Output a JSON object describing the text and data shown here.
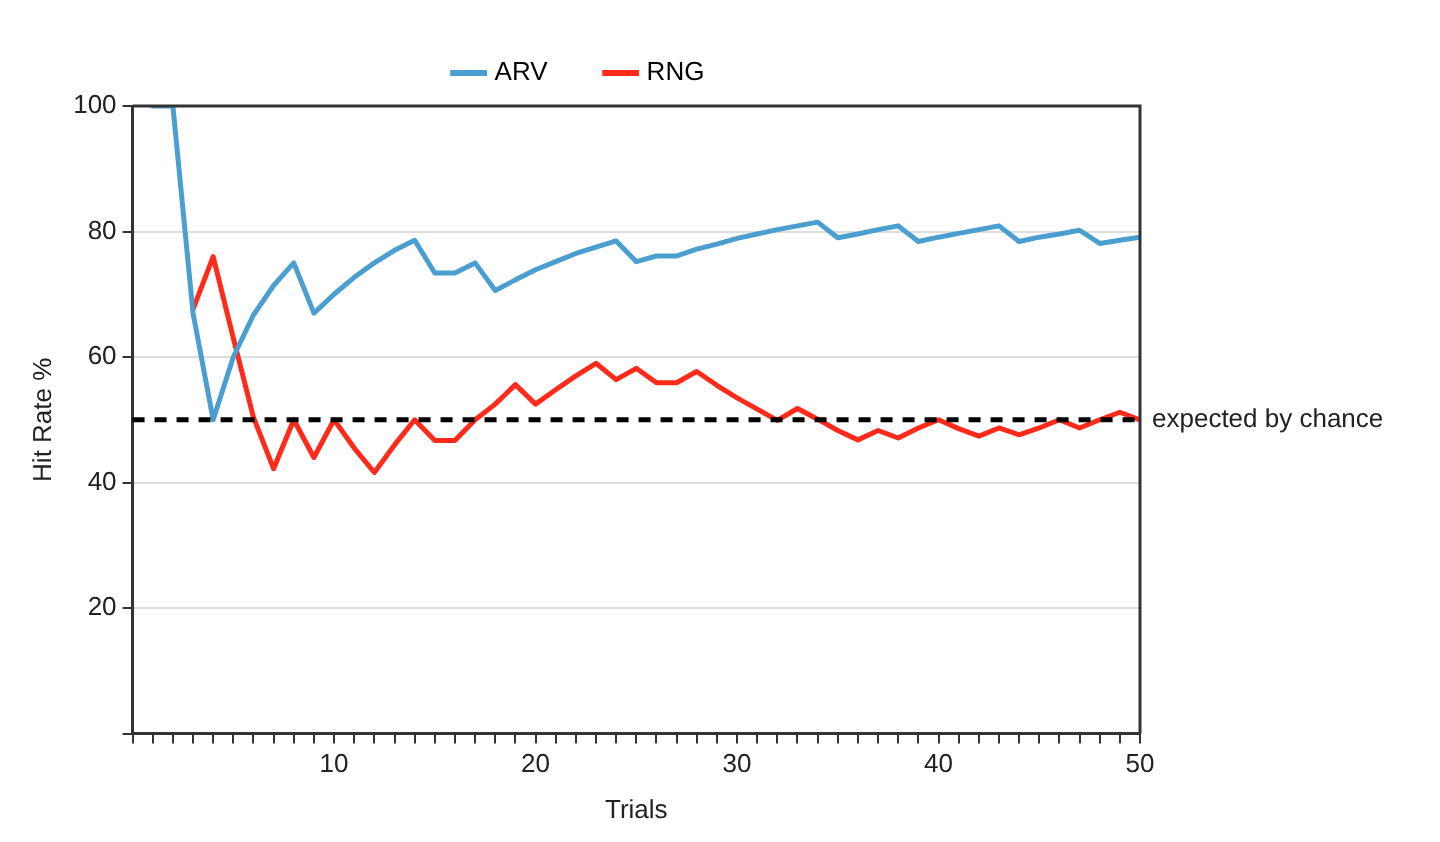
{
  "chart_data": {
    "type": "line",
    "xlabel": "Trials",
    "ylabel": "Hit Rate %",
    "x": [
      1,
      2,
      3,
      4,
      5,
      6,
      7,
      8,
      9,
      10,
      11,
      12,
      13,
      14,
      15,
      16,
      17,
      18,
      19,
      20,
      21,
      22,
      23,
      24,
      25,
      26,
      27,
      28,
      29,
      30,
      31,
      32,
      33,
      34,
      35,
      36,
      37,
      38,
      39,
      40,
      41,
      42,
      43,
      44,
      45,
      46,
      47,
      48,
      49,
      50
    ],
    "series": [
      {
        "name": "ARV",
        "color": "#4a9fd0",
        "values": [
          100,
          100,
          67,
          50,
          60,
          66.7,
          71.4,
          75,
          67,
          70,
          72.7,
          75,
          77,
          78.6,
          73.4,
          73.4,
          75,
          70.6,
          72.3,
          73.9,
          75.2,
          76.5,
          77.5,
          78.5,
          75.2,
          76.1,
          76.1,
          77.2,
          78,
          78.9,
          79.6,
          80.3,
          80.9,
          81.5,
          79,
          79.6,
          80.3,
          80.9,
          78.4,
          79.1,
          79.7,
          80.3,
          80.9,
          78.4,
          79.1,
          79.6,
          80.2,
          78.1,
          78.6,
          79.1
        ]
      },
      {
        "name": "RNG",
        "color": "#ff2a1a",
        "values": [
          null,
          null,
          67.6,
          76,
          63,
          50.4,
          42.2,
          50,
          44,
          50,
          45.5,
          41.6,
          46,
          50,
          46.7,
          46.7,
          50,
          52.5,
          55.6,
          52.5,
          54.8,
          57,
          59,
          56.4,
          58.2,
          55.9,
          55.9,
          57.7,
          55.5,
          53.5,
          51.7,
          49.9,
          51.8,
          50.1,
          48.3,
          46.8,
          48.3,
          47.1,
          48.7,
          50,
          48.6,
          47.4,
          48.7,
          47.6,
          48.7,
          50,
          48.7,
          50,
          51.2,
          50
        ]
      }
    ],
    "xlim": [
      0,
      50
    ],
    "xticks": [
      {
        "value": 0,
        "label": null
      },
      {
        "value": 1,
        "label": null
      },
      {
        "value": 2,
        "label": null
      },
      {
        "value": 3,
        "label": null
      },
      {
        "value": 4,
        "label": null
      },
      {
        "value": 5,
        "label": null
      },
      {
        "value": 6,
        "label": null
      },
      {
        "value": 7,
        "label": null
      },
      {
        "value": 8,
        "label": null
      },
      {
        "value": 9,
        "label": null
      },
      10,
      {
        "value": 11,
        "label": null
      },
      {
        "value": 12,
        "label": null
      },
      {
        "value": 13,
        "label": null
      },
      {
        "value": 14,
        "label": null
      },
      {
        "value": 15,
        "label": null
      },
      {
        "value": 16,
        "label": null
      },
      {
        "value": 17,
        "label": null
      },
      {
        "value": 18,
        "label": null
      },
      {
        "value": 19,
        "label": null
      },
      20,
      {
        "value": 21,
        "label": null
      },
      {
        "value": 22,
        "label": null
      },
      {
        "value": 23,
        "label": null
      },
      {
        "value": 24,
        "label": null
      },
      {
        "value": 25,
        "label": null
      },
      {
        "value": 26,
        "label": null
      },
      {
        "value": 27,
        "label": null
      },
      {
        "value": 28,
        "label": null
      },
      {
        "value": 29,
        "label": null
      },
      30,
      {
        "value": 31,
        "label": null
      },
      {
        "value": 32,
        "label": null
      },
      {
        "value": 33,
        "label": null
      },
      {
        "value": 34,
        "label": null
      },
      {
        "value": 35,
        "label": null
      },
      {
        "value": 36,
        "label": null
      },
      {
        "value": 37,
        "label": null
      },
      {
        "value": 38,
        "label": null
      },
      {
        "value": 39,
        "label": null
      },
      40,
      {
        "value": 41,
        "label": null
      },
      {
        "value": 42,
        "label": null
      },
      {
        "value": 43,
        "label": null
      },
      {
        "value": 44,
        "label": null
      },
      {
        "value": 45,
        "label": null
      },
      {
        "value": 46,
        "label": null
      },
      {
        "value": 47,
        "label": null
      },
      {
        "value": 48,
        "label": null
      },
      {
        "value": 49,
        "label": null
      },
      50
    ],
    "ylim": [
      0,
      100
    ],
    "yticks": [
      {
        "value": 0,
        "label": null
      },
      20,
      40,
      60,
      80,
      100
    ],
    "ref_lines": [
      {
        "axis": "y",
        "value": 50,
        "label": "expected by chance",
        "color": "#000000",
        "line_style": "dashed"
      }
    ],
    "grid": "y",
    "legend": "top",
    "marker": "none",
    "line_style": "solid"
  }
}
